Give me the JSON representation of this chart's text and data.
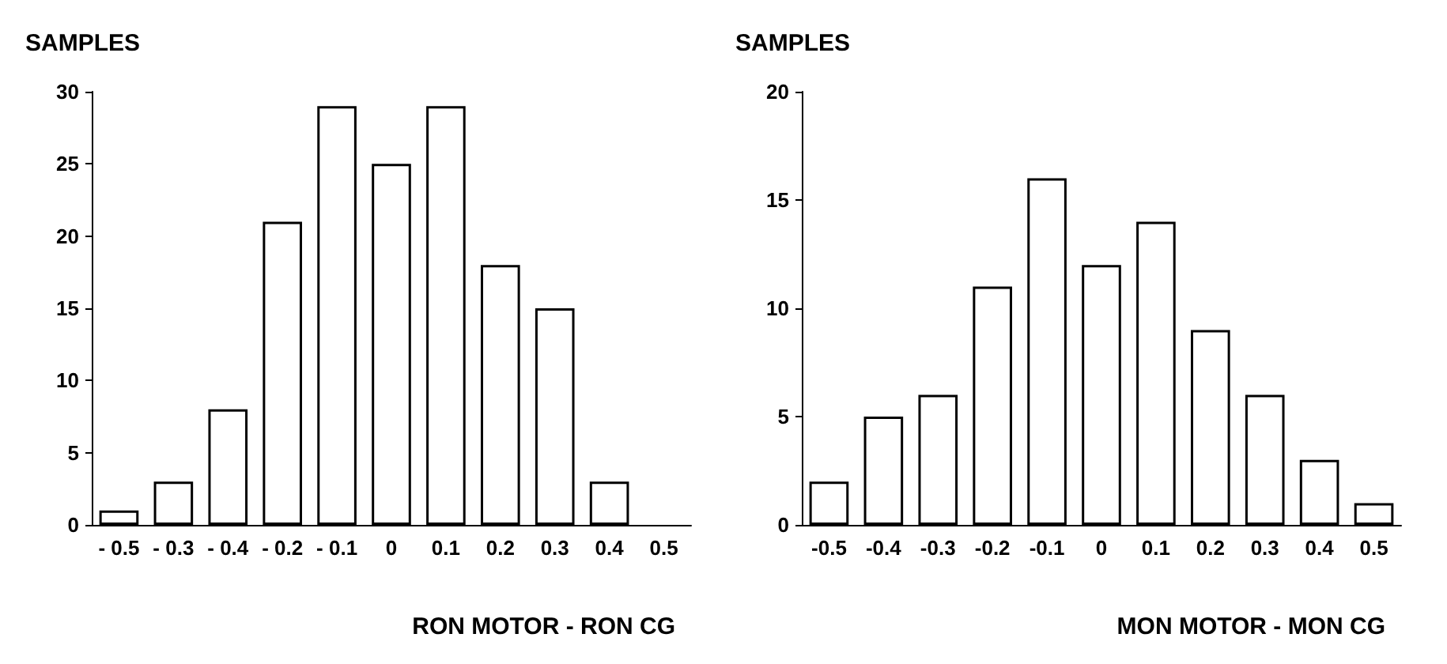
{
  "chart_data": [
    {
      "type": "bar",
      "ylabel": "SAMPLES",
      "xlabel": "RON MOTOR - RON CG",
      "categories": [
        "- 0.5",
        "- 0.3",
        "- 0.4",
        "- 0.2",
        "- 0.1",
        "0",
        "0.1",
        "0.2",
        "0.3",
        "0.4",
        "0.5"
      ],
      "values": [
        1,
        3,
        8,
        21,
        29,
        25,
        29,
        18,
        15,
        3,
        null
      ],
      "color": "#ffffff",
      "ylim": [
        0,
        30
      ],
      "yticks": [
        0,
        5,
        10,
        15,
        20,
        25,
        30
      ],
      "grid": false
    },
    {
      "type": "bar",
      "ylabel": "SAMPLES",
      "xlabel": "MON MOTOR - MON CG",
      "categories": [
        "-0.5",
        "-0.4",
        "-0.3",
        "-0.2",
        "-0.1",
        "0",
        "0.1",
        "0.2",
        "0.3",
        "0.4",
        "0.5"
      ],
      "values": [
        2,
        5,
        6,
        11,
        16,
        12,
        14,
        9,
        6,
        3,
        1
      ],
      "color": "#ffffff",
      "ylim": [
        0,
        20
      ],
      "yticks": [
        0,
        5,
        10,
        15,
        20
      ],
      "grid": false
    }
  ]
}
